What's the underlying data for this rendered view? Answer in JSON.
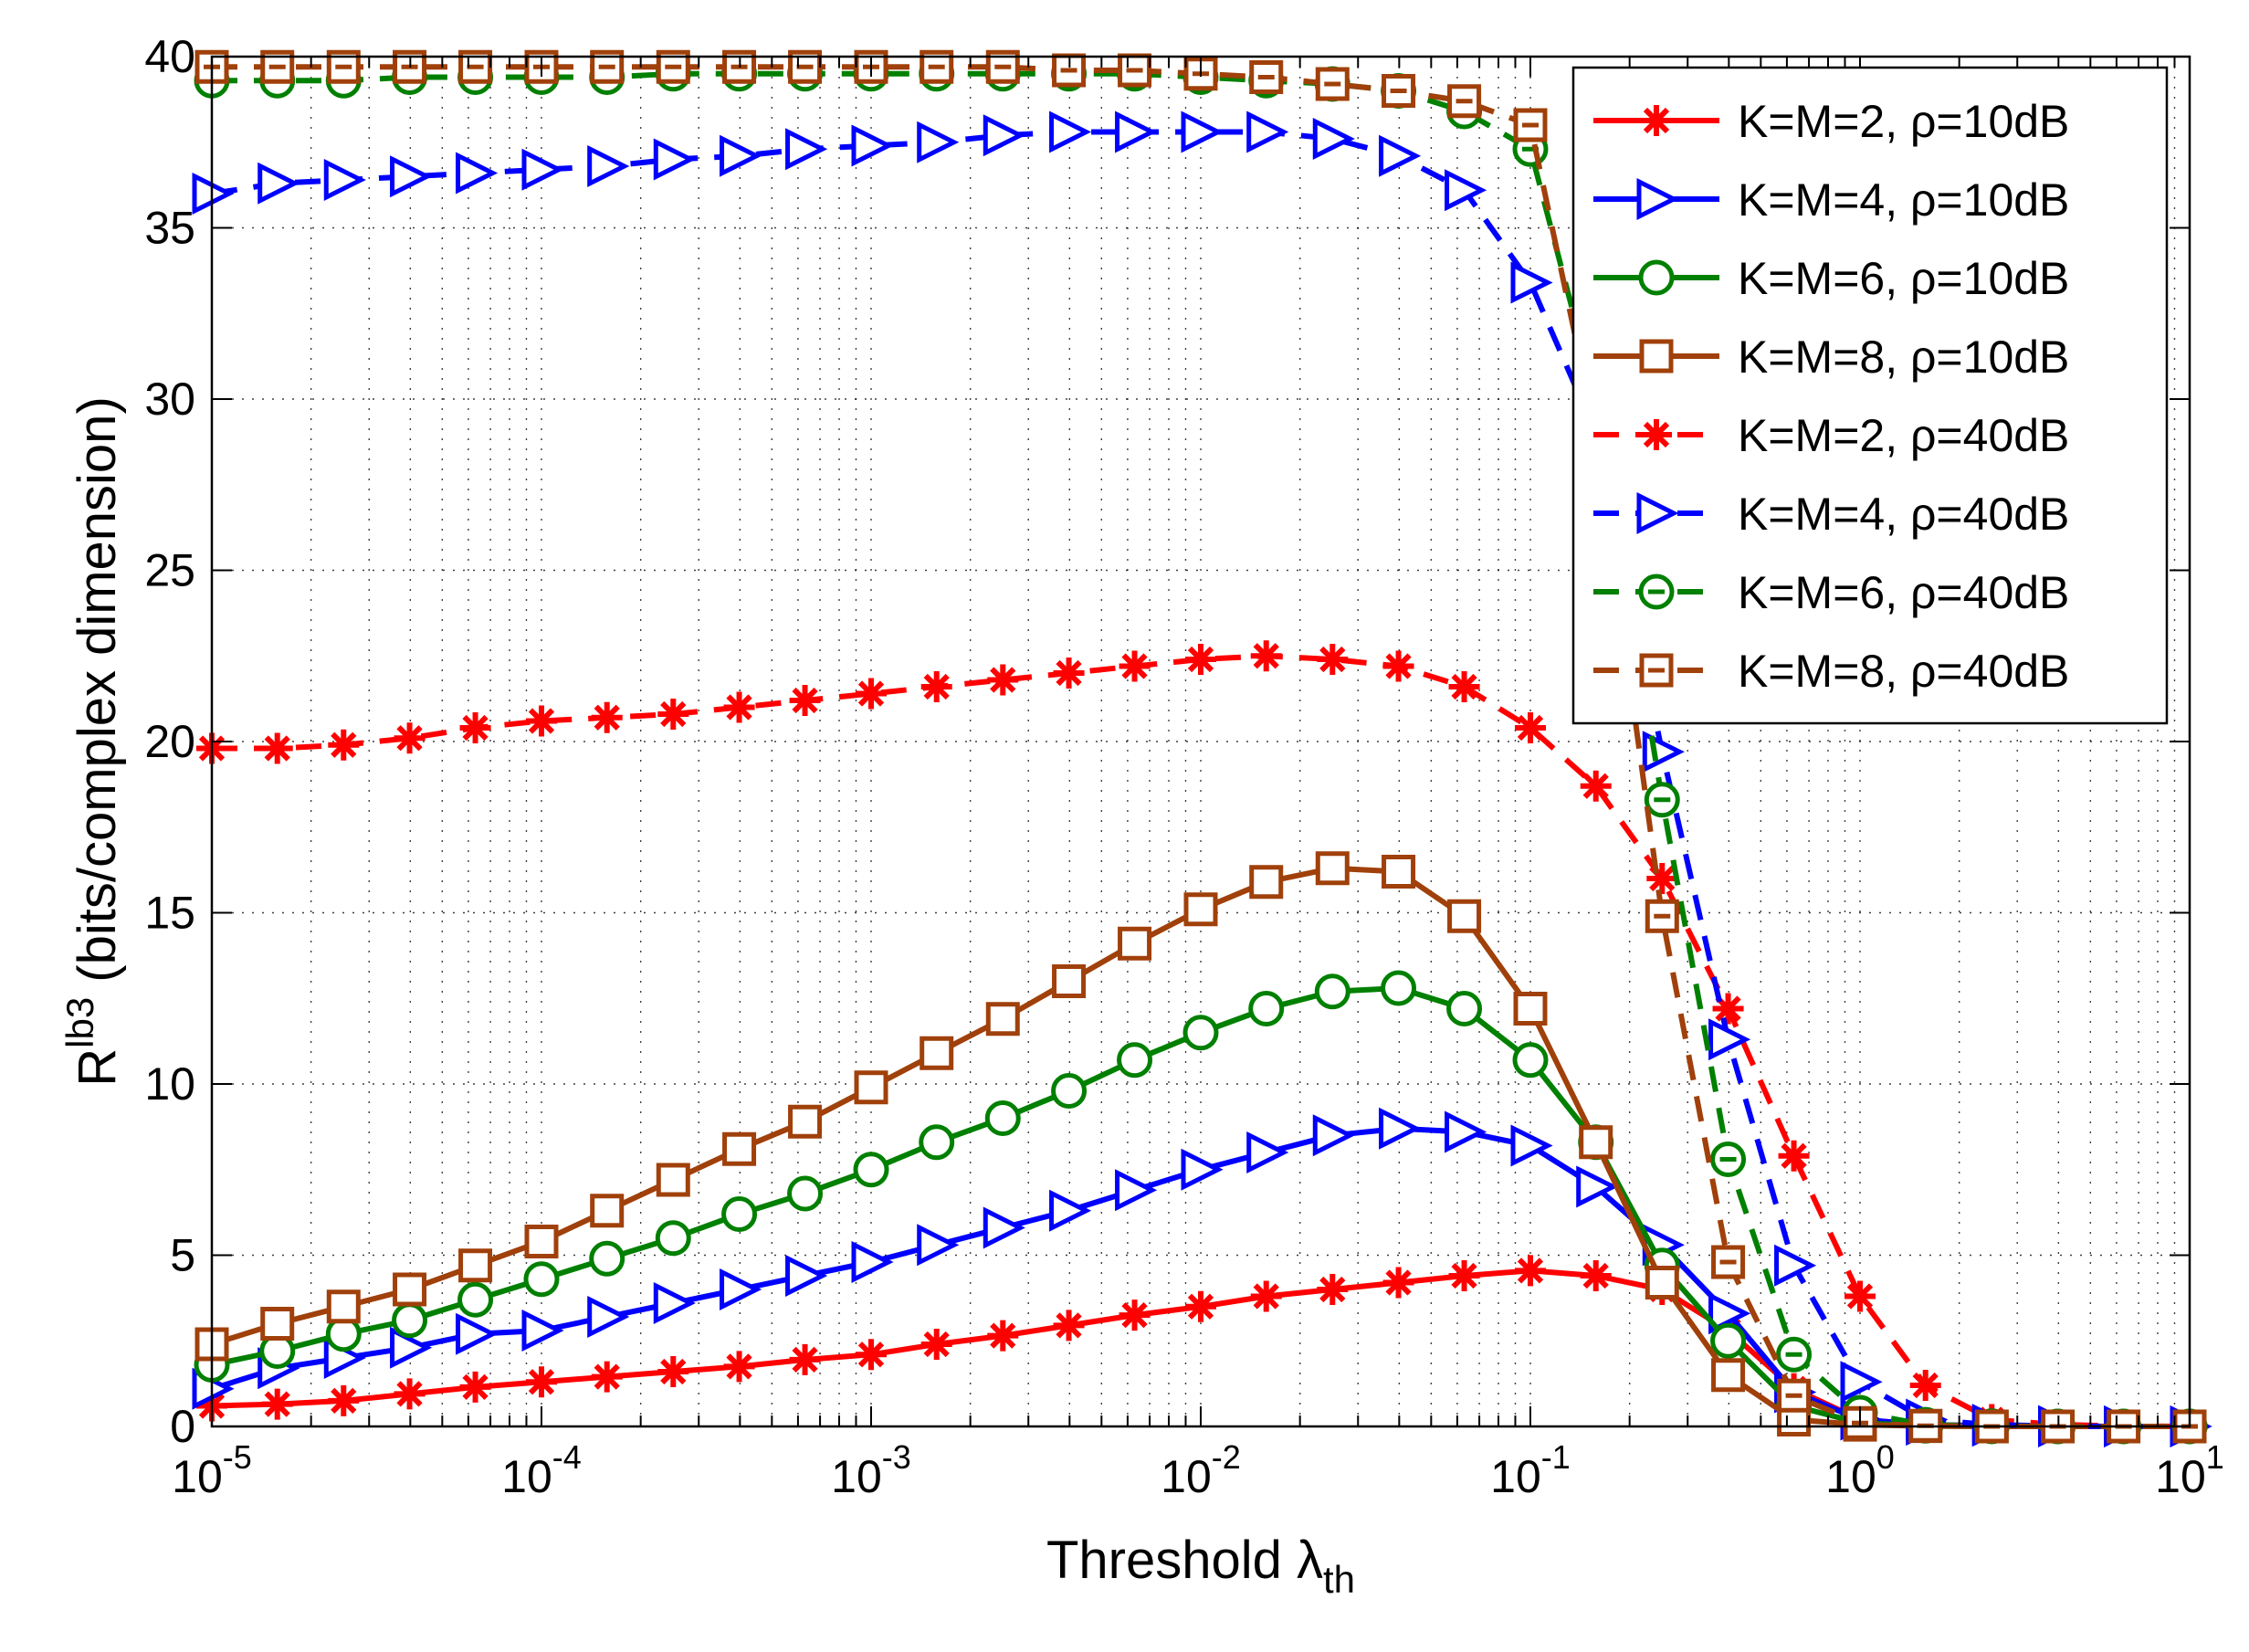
{
  "chart_data": {
    "type": "line",
    "xscale": "log",
    "xlim": [
      1e-05,
      10
    ],
    "ylim": [
      0,
      40
    ],
    "grid": true,
    "legend_position": "top-right",
    "xlabel": {
      "main": "Threshold ",
      "symbol": "λ",
      "sub": "th"
    },
    "ylabel": {
      "main": "R",
      "sup": "lb3",
      "rest": " (bits/complex dimension)"
    },
    "xticks": [
      {
        "base": "10",
        "exp": "-5"
      },
      {
        "base": "10",
        "exp": "-4"
      },
      {
        "base": "10",
        "exp": "-3"
      },
      {
        "base": "10",
        "exp": "-2"
      },
      {
        "base": "10",
        "exp": "-1"
      },
      {
        "base": "10",
        "exp": "0"
      },
      {
        "base": "10",
        "exp": "1"
      }
    ],
    "yticks": [
      "0",
      "5",
      "10",
      "15",
      "20",
      "25",
      "30",
      "35",
      "40"
    ],
    "x": [
      1e-05,
      1.58e-05,
      2.51e-05,
      3.98e-05,
      6.3e-05,
      0.0001,
      0.000158,
      0.000251,
      0.000398,
      0.00063,
      0.001,
      0.00158,
      0.00251,
      0.00398,
      0.0063,
      0.01,
      0.0158,
      0.0251,
      0.0398,
      0.063,
      0.1,
      0.158,
      0.251,
      0.398,
      0.63,
      1,
      1.58,
      2.51,
      3.98,
      6.3,
      10
    ],
    "series": [
      {
        "name": "K=M=2, ρ=10dB",
        "color": "#ff0000",
        "dash": "solid",
        "marker": "asterisk",
        "values": [
          0.6,
          0.65,
          0.75,
          0.95,
          1.15,
          1.3,
          1.45,
          1.6,
          1.75,
          1.95,
          2.1,
          2.4,
          2.65,
          2.95,
          3.25,
          3.5,
          3.8,
          4.0,
          4.2,
          4.4,
          4.55,
          4.4,
          4.0,
          2.8,
          1.1,
          0.2,
          0.05,
          0.02,
          0.0,
          0.0,
          0.0
        ]
      },
      {
        "name": "K=M=4, ρ=10dB",
        "color": "#0000ff",
        "dash": "solid",
        "marker": "triangle-right",
        "values": [
          1.1,
          1.7,
          2.0,
          2.3,
          2.7,
          2.8,
          3.2,
          3.6,
          4.0,
          4.4,
          4.8,
          5.3,
          5.8,
          6.3,
          6.9,
          7.5,
          8.0,
          8.5,
          8.7,
          8.6,
          8.2,
          7.0,
          5.3,
          3.3,
          1.0,
          0.2,
          0.05,
          0.02,
          0.0,
          0.0,
          0.0
        ]
      },
      {
        "name": "K=M=6, ρ=10dB",
        "color": "#008000",
        "dash": "solid",
        "marker": "circle",
        "values": [
          1.8,
          2.2,
          2.7,
          3.1,
          3.7,
          4.3,
          4.9,
          5.5,
          6.2,
          6.8,
          7.5,
          8.3,
          9.0,
          9.8,
          10.7,
          11.5,
          12.2,
          12.7,
          12.8,
          12.2,
          10.7,
          8.3,
          4.7,
          2.5,
          0.6,
          0.1,
          0.02,
          0.0,
          0.0,
          0.0,
          0.0
        ]
      },
      {
        "name": "K=M=8, ρ=10dB",
        "color": "#a0400a",
        "dash": "solid",
        "marker": "square",
        "values": [
          2.4,
          3.0,
          3.5,
          4.0,
          4.7,
          5.4,
          6.3,
          7.2,
          8.1,
          8.9,
          9.9,
          10.9,
          11.9,
          13.0,
          14.1,
          15.1,
          15.9,
          16.3,
          16.2,
          14.9,
          12.2,
          8.3,
          4.2,
          1.5,
          0.2,
          0.05,
          0.01,
          0.0,
          0.0,
          0.0,
          0.0
        ]
      },
      {
        "name": "K=M=2, ρ=40dB",
        "color": "#ff0000",
        "dash": "dashed",
        "marker": "asterisk",
        "values": [
          19.8,
          19.8,
          19.9,
          20.1,
          20.4,
          20.6,
          20.7,
          20.8,
          21.0,
          21.2,
          21.4,
          21.6,
          21.8,
          22.0,
          22.2,
          22.4,
          22.5,
          22.4,
          22.2,
          21.6,
          20.4,
          18.7,
          16.0,
          12.2,
          7.9,
          3.8,
          1.2,
          0.2,
          0.05,
          0.01,
          0.0
        ]
      },
      {
        "name": "K=M=4, ρ=40dB",
        "color": "#0000ff",
        "dash": "dashed",
        "marker": "triangle-right",
        "values": [
          36.0,
          36.3,
          36.4,
          36.5,
          36.6,
          36.7,
          36.8,
          37.0,
          37.1,
          37.3,
          37.4,
          37.5,
          37.7,
          37.8,
          37.8,
          37.8,
          37.8,
          37.6,
          37.1,
          36.1,
          33.4,
          29.0,
          19.7,
          11.3,
          4.7,
          1.3,
          0.2,
          0.05,
          0.01,
          0.0,
          0.0
        ]
      },
      {
        "name": "K=M=6, ρ=40dB",
        "color": "#008000",
        "dash": "dashed",
        "marker": "circle-dash",
        "values": [
          39.3,
          39.3,
          39.3,
          39.4,
          39.4,
          39.4,
          39.4,
          39.5,
          39.5,
          39.5,
          39.5,
          39.5,
          39.5,
          39.5,
          39.5,
          39.4,
          39.3,
          39.2,
          39.0,
          38.4,
          37.3,
          30.0,
          18.3,
          7.8,
          2.1,
          0.4,
          0.05,
          0.01,
          0.0,
          0.0,
          0.0
        ]
      },
      {
        "name": "K=M=8, ρ=40dB",
        "color": "#a0400a",
        "dash": "dashed",
        "marker": "square-dash",
        "values": [
          39.7,
          39.7,
          39.7,
          39.7,
          39.7,
          39.7,
          39.7,
          39.7,
          39.7,
          39.7,
          39.7,
          39.7,
          39.7,
          39.6,
          39.6,
          39.5,
          39.4,
          39.2,
          39.0,
          38.7,
          38.0,
          29.0,
          14.9,
          4.8,
          0.9,
          0.1,
          0.02,
          0.0,
          0.0,
          0.0,
          0.0
        ]
      }
    ]
  }
}
